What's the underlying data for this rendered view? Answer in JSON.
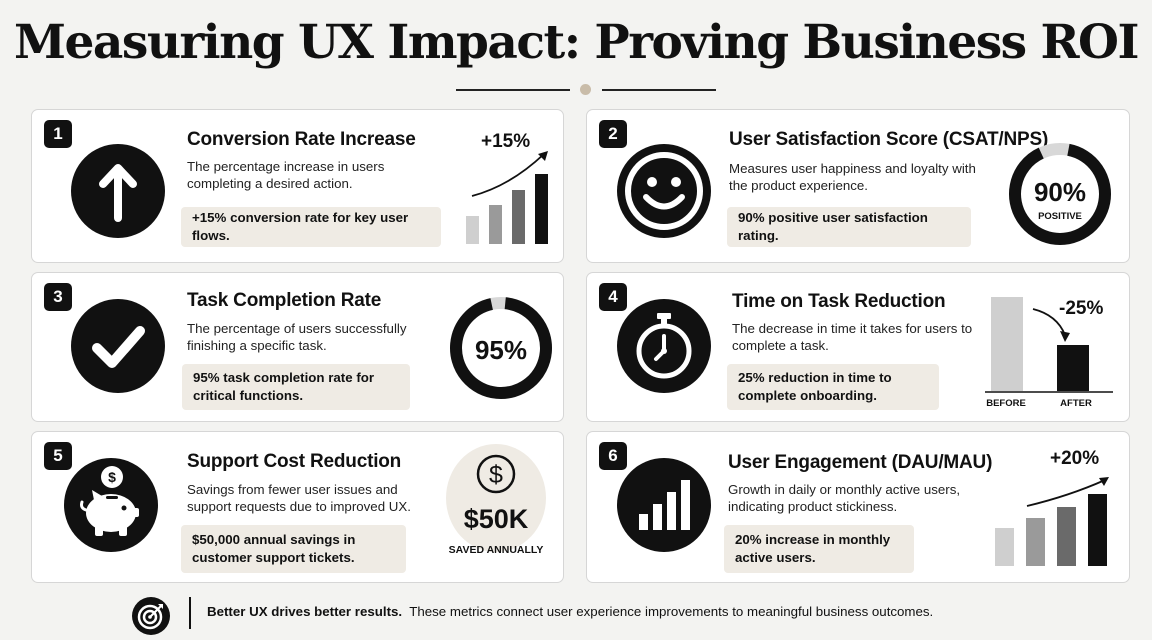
{
  "title": "Measuring UX Impact: Proving Business ROI",
  "cards": [
    {
      "number": "1",
      "title": "Conversion Rate Increase",
      "description": "The percentage increase in users completing a desired action.",
      "callout": "+15% conversion rate for key user flows.",
      "icon": "arrow-up-icon",
      "metric": "+15%"
    },
    {
      "number": "2",
      "title": "User Satisfaction Score (CSAT/NPS)",
      "description": "Measures user happiness and loyalty with the product experience.",
      "callout": "90% positive user satisfaction rating.",
      "icon": "smiley-icon",
      "metric": "90%",
      "metric_label": "POSITIVE",
      "ring_fraction": 0.9
    },
    {
      "number": "3",
      "title": "Task Completion Rate",
      "description": "The percentage of users successfully finishing a specific task.",
      "callout": "95% task completion rate for critical functions.",
      "icon": "checkmark-icon",
      "metric": "95%",
      "ring_fraction": 0.95
    },
    {
      "number": "4",
      "title": "Time on Task Reduction",
      "description": "The decrease in time it takes for users to complete a task.",
      "callout": "25% reduction in time to complete onboarding.",
      "icon": "stopwatch-icon",
      "metric": "-25%",
      "bar_labels": [
        "BEFORE",
        "AFTER"
      ]
    },
    {
      "number": "5",
      "title": "Support Cost Reduction",
      "description": "Savings from fewer user issues and support requests due to improved UX.",
      "callout": "$50,000 annual savings in customer support tickets.",
      "icon": "piggy-bank-icon",
      "metric": "$50K",
      "metric_label": "SAVED ANNUALLY"
    },
    {
      "number": "6",
      "title": "User Engagement (DAU/MAU)",
      "description": "Growth in daily or monthly active users, indicating product stickiness.",
      "callout": "20% increase in monthly active users.",
      "icon": "bar-chart-icon",
      "metric": "+20%"
    }
  ],
  "footer": {
    "icon": "target-icon",
    "bold": "Better UX drives better results.",
    "text": "These metrics connect user experience improvements to meaningful business outcomes."
  },
  "colors": {
    "dark": "#111111",
    "callout_bg": "#efebe4",
    "accent_dot": "#c9bca9",
    "ring_track": "#d8d8d8",
    "bar_light": "#cfcfcf",
    "bar_mid": "#9a9a9a",
    "bar_dark": "#6a6a6a"
  }
}
